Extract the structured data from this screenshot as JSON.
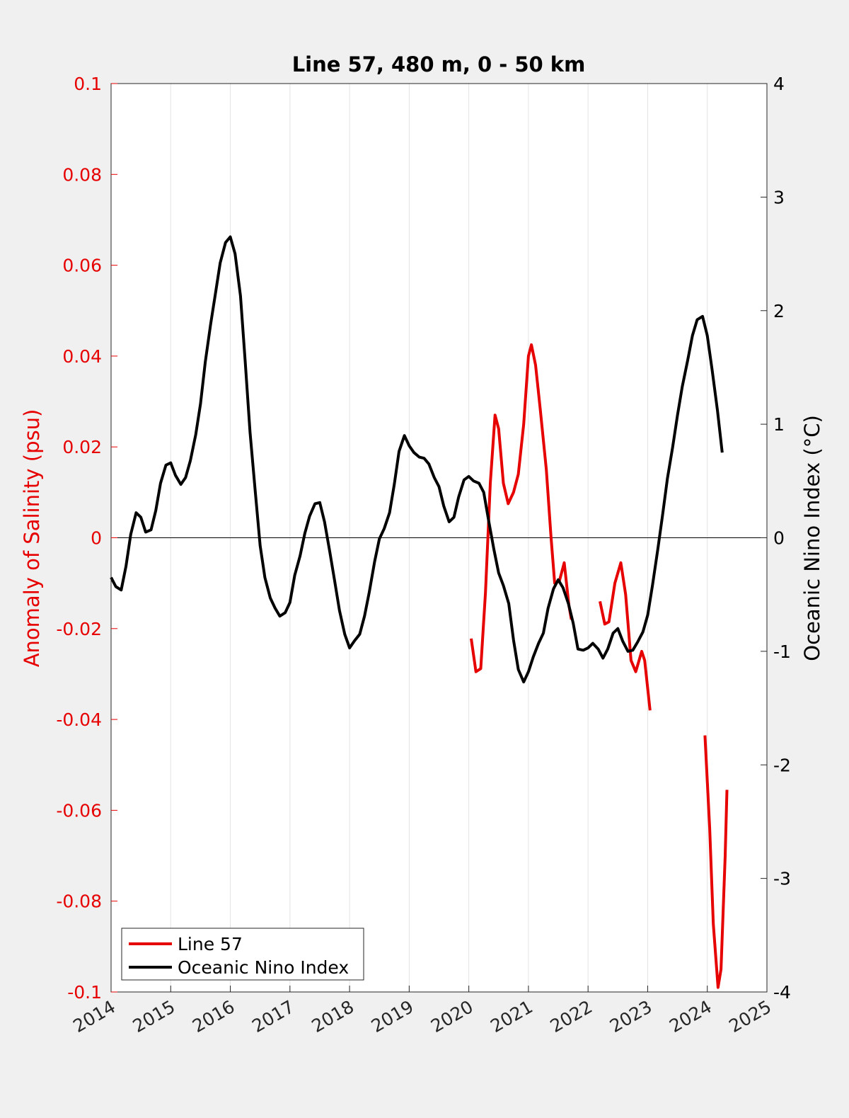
{
  "chart_data": {
    "type": "line",
    "title": "Line 57, 480 m, 0 - 50 km",
    "xlabel": "",
    "ylabel_left": "Anomaly of Salinity (psu)",
    "ylabel_right": "Oceanic Nino Index (°C)",
    "xlim": [
      2014,
      2025
    ],
    "ylim_left": [
      -0.1,
      0.1
    ],
    "ylim_right": [
      -4,
      4
    ],
    "x_ticks": [
      "2014",
      "2015",
      "2016",
      "2017",
      "2018",
      "2019",
      "2020",
      "2021",
      "2022",
      "2023",
      "2024",
      "2025"
    ],
    "y_left_ticks": [
      "-0.1",
      "-0.08",
      "-0.06",
      "-0.04",
      "-0.02",
      "0",
      "0.02",
      "0.04",
      "0.06",
      "0.08",
      "0.1"
    ],
    "y_right_ticks": [
      "-4",
      "-3",
      "-2",
      "-1",
      "0",
      "1",
      "2",
      "3",
      "4"
    ],
    "grid": "vertical",
    "zero_line": true,
    "legend_position": "bottom-left",
    "colors": {
      "line57": "#e60000",
      "oni": "#000000",
      "left_axis": "#e60000",
      "right_axis": "#000000"
    },
    "series": [
      {
        "name": "Line 57",
        "axis": "left",
        "segments": [
          [
            [
              2020.04,
              -0.0222
            ],
            [
              2020.12,
              -0.0295
            ],
            [
              2020.2,
              -0.0288
            ],
            [
              2020.28,
              -0.012
            ],
            [
              2020.36,
              0.012
            ],
            [
              2020.44,
              0.027
            ],
            [
              2020.5,
              0.024
            ],
            [
              2020.58,
              0.012
            ],
            [
              2020.66,
              0.0075
            ],
            [
              2020.75,
              0.01
            ],
            [
              2020.83,
              0.014
            ],
            [
              2020.92,
              0.025
            ],
            [
              2021.0,
              0.04
            ],
            [
              2021.05,
              0.0425
            ],
            [
              2021.12,
              0.038
            ],
            [
              2021.2,
              0.028
            ],
            [
              2021.3,
              0.015
            ],
            [
              2021.38,
              0.0
            ],
            [
              2021.44,
              -0.01
            ],
            [
              2021.52,
              -0.0095
            ],
            [
              2021.6,
              -0.0055
            ],
            [
              2021.68,
              -0.015
            ],
            [
              2021.72,
              -0.018
            ]
          ],
          [
            [
              2022.2,
              -0.014
            ],
            [
              2022.28,
              -0.019
            ],
            [
              2022.35,
              -0.0185
            ],
            [
              2022.45,
              -0.01
            ],
            [
              2022.55,
              -0.0055
            ],
            [
              2022.63,
              -0.0125
            ],
            [
              2022.72,
              -0.027
            ],
            [
              2022.8,
              -0.0295
            ],
            [
              2022.9,
              -0.025
            ],
            [
              2022.95,
              -0.027
            ],
            [
              2023.04,
              -0.038
            ]
          ],
          [
            [
              2023.96,
              -0.0435
            ],
            [
              2024.04,
              -0.064
            ],
            [
              2024.1,
              -0.085
            ],
            [
              2024.18,
              -0.099
            ],
            [
              2024.23,
              -0.095
            ],
            [
              2024.3,
              -0.07
            ],
            [
              2024.33,
              -0.0555
            ]
          ]
        ]
      },
      {
        "name": "Oceanic Nino Index",
        "axis": "right",
        "segments": [
          [
            [
              2014.0,
              -0.35
            ],
            [
              2014.08,
              -0.43
            ],
            [
              2014.17,
              -0.46
            ],
            [
              2014.25,
              -0.25
            ],
            [
              2014.33,
              0.03
            ],
            [
              2014.42,
              0.22
            ],
            [
              2014.5,
              0.18
            ],
            [
              2014.58,
              0.05
            ],
            [
              2014.67,
              0.07
            ],
            [
              2014.75,
              0.24
            ],
            [
              2014.83,
              0.48
            ],
            [
              2014.92,
              0.64
            ],
            [
              2015.0,
              0.66
            ],
            [
              2015.08,
              0.55
            ],
            [
              2015.17,
              0.47
            ],
            [
              2015.25,
              0.53
            ],
            [
              2015.33,
              0.68
            ],
            [
              2015.42,
              0.91
            ],
            [
              2015.5,
              1.18
            ],
            [
              2015.58,
              1.55
            ],
            [
              2015.67,
              1.88
            ],
            [
              2015.75,
              2.15
            ],
            [
              2015.83,
              2.42
            ],
            [
              2015.92,
              2.6
            ],
            [
              2016.0,
              2.65
            ],
            [
              2016.08,
              2.5
            ],
            [
              2016.17,
              2.13
            ],
            [
              2016.25,
              1.55
            ],
            [
              2016.33,
              0.93
            ],
            [
              2016.42,
              0.4
            ],
            [
              2016.5,
              -0.07
            ],
            [
              2016.58,
              -0.35
            ],
            [
              2016.67,
              -0.53
            ],
            [
              2016.75,
              -0.62
            ],
            [
              2016.83,
              -0.69
            ],
            [
              2016.92,
              -0.66
            ],
            [
              2017.0,
              -0.57
            ],
            [
              2017.08,
              -0.33
            ],
            [
              2017.17,
              -0.16
            ],
            [
              2017.25,
              0.04
            ],
            [
              2017.33,
              0.19
            ],
            [
              2017.42,
              0.3
            ],
            [
              2017.5,
              0.31
            ],
            [
              2017.58,
              0.14
            ],
            [
              2017.67,
              -0.13
            ],
            [
              2017.75,
              -0.38
            ],
            [
              2017.83,
              -0.64
            ],
            [
              2017.92,
              -0.85
            ],
            [
              2018.0,
              -0.97
            ],
            [
              2018.08,
              -0.91
            ],
            [
              2018.17,
              -0.85
            ],
            [
              2018.25,
              -0.69
            ],
            [
              2018.33,
              -0.48
            ],
            [
              2018.42,
              -0.21
            ],
            [
              2018.5,
              -0.01
            ],
            [
              2018.58,
              0.08
            ],
            [
              2018.67,
              0.22
            ],
            [
              2018.75,
              0.47
            ],
            [
              2018.83,
              0.76
            ],
            [
              2018.92,
              0.9
            ],
            [
              2019.0,
              0.81
            ],
            [
              2019.08,
              0.75
            ],
            [
              2019.17,
              0.71
            ],
            [
              2019.25,
              0.7
            ],
            [
              2019.33,
              0.65
            ],
            [
              2019.42,
              0.53
            ],
            [
              2019.5,
              0.45
            ],
            [
              2019.58,
              0.28
            ],
            [
              2019.67,
              0.14
            ],
            [
              2019.75,
              0.18
            ],
            [
              2019.83,
              0.36
            ],
            [
              2019.92,
              0.51
            ],
            [
              2020.0,
              0.54
            ],
            [
              2020.08,
              0.5
            ],
            [
              2020.17,
              0.48
            ],
            [
              2020.25,
              0.4
            ],
            [
              2020.33,
              0.16
            ],
            [
              2020.42,
              -0.1
            ],
            [
              2020.5,
              -0.31
            ],
            [
              2020.58,
              -0.42
            ],
            [
              2020.67,
              -0.58
            ],
            [
              2020.75,
              -0.9
            ],
            [
              2020.83,
              -1.16
            ],
            [
              2020.92,
              -1.27
            ],
            [
              2021.0,
              -1.18
            ],
            [
              2021.08,
              -1.05
            ],
            [
              2021.17,
              -0.93
            ],
            [
              2021.25,
              -0.84
            ],
            [
              2021.33,
              -0.62
            ],
            [
              2021.42,
              -0.45
            ],
            [
              2021.5,
              -0.37
            ],
            [
              2021.58,
              -0.44
            ],
            [
              2021.67,
              -0.58
            ],
            [
              2021.75,
              -0.75
            ],
            [
              2021.83,
              -0.98
            ],
            [
              2021.92,
              -0.99
            ],
            [
              2022.0,
              -0.97
            ],
            [
              2022.08,
              -0.93
            ],
            [
              2022.17,
              -0.98
            ],
            [
              2022.25,
              -1.06
            ],
            [
              2022.33,
              -0.98
            ],
            [
              2022.42,
              -0.84
            ],
            [
              2022.5,
              -0.8
            ],
            [
              2022.58,
              -0.91
            ],
            [
              2022.67,
              -1.0
            ],
            [
              2022.75,
              -0.99
            ],
            [
              2022.83,
              -0.92
            ],
            [
              2022.92,
              -0.83
            ],
            [
              2023.0,
              -0.68
            ],
            [
              2023.08,
              -0.42
            ],
            [
              2023.17,
              -0.1
            ],
            [
              2023.25,
              0.2
            ],
            [
              2023.33,
              0.52
            ],
            [
              2023.42,
              0.8
            ],
            [
              2023.5,
              1.08
            ],
            [
              2023.58,
              1.33
            ],
            [
              2023.67,
              1.56
            ],
            [
              2023.75,
              1.78
            ],
            [
              2023.83,
              1.92
            ],
            [
              2023.92,
              1.95
            ],
            [
              2024.0,
              1.78
            ],
            [
              2024.08,
              1.48
            ],
            [
              2024.17,
              1.12
            ],
            [
              2024.25,
              0.75
            ]
          ]
        ]
      }
    ]
  }
}
